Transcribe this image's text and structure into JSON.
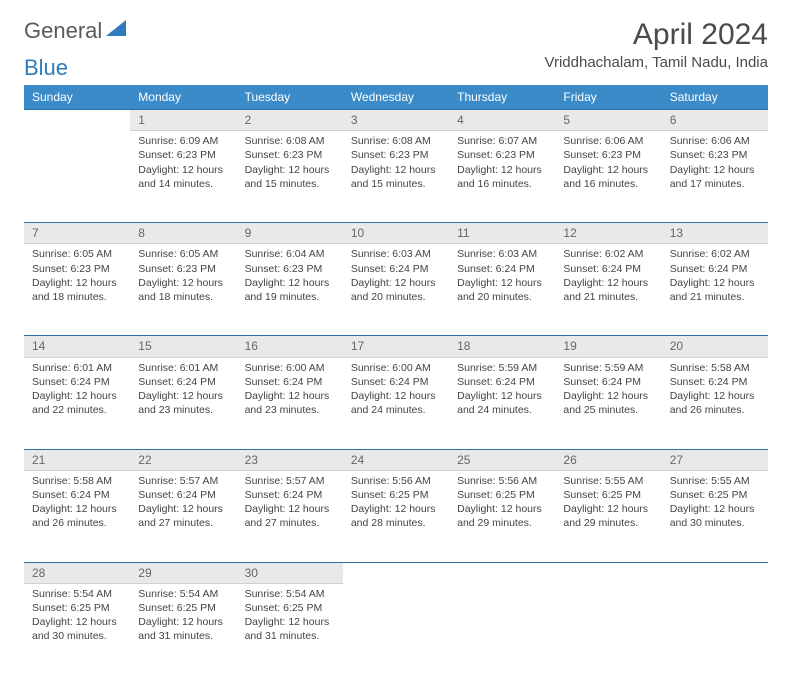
{
  "logo": {
    "text1": "General",
    "text2": "Blue",
    "icon_color": "#2f7bbf"
  },
  "title": "April 2024",
  "location": "Vriddhachalam, Tamil Nadu, India",
  "colors": {
    "header_bg": "#3b8bc9",
    "header_text": "#ffffff",
    "daynum_bg": "#e9e9e9",
    "daynum_border_top": "#2f6fa8",
    "body_text": "#444444",
    "title_text": "#4a4a4a"
  },
  "typography": {
    "title_fontsize": 30,
    "location_fontsize": 15,
    "dayheader_fontsize": 12,
    "cell_fontsize": 10.5
  },
  "layout": {
    "columns": 7,
    "header_row_height": 26,
    "body_row_height": 92
  },
  "day_headers": [
    "Sunday",
    "Monday",
    "Tuesday",
    "Wednesday",
    "Thursday",
    "Friday",
    "Saturday"
  ],
  "weeks": [
    [
      null,
      {
        "n": "1",
        "sr": "6:09 AM",
        "ss": "6:23 PM",
        "dl": "12 hours and 14 minutes."
      },
      {
        "n": "2",
        "sr": "6:08 AM",
        "ss": "6:23 PM",
        "dl": "12 hours and 15 minutes."
      },
      {
        "n": "3",
        "sr": "6:08 AM",
        "ss": "6:23 PM",
        "dl": "12 hours and 15 minutes."
      },
      {
        "n": "4",
        "sr": "6:07 AM",
        "ss": "6:23 PM",
        "dl": "12 hours and 16 minutes."
      },
      {
        "n": "5",
        "sr": "6:06 AM",
        "ss": "6:23 PM",
        "dl": "12 hours and 16 minutes."
      },
      {
        "n": "6",
        "sr": "6:06 AM",
        "ss": "6:23 PM",
        "dl": "12 hours and 17 minutes."
      }
    ],
    [
      {
        "n": "7",
        "sr": "6:05 AM",
        "ss": "6:23 PM",
        "dl": "12 hours and 18 minutes."
      },
      {
        "n": "8",
        "sr": "6:05 AM",
        "ss": "6:23 PM",
        "dl": "12 hours and 18 minutes."
      },
      {
        "n": "9",
        "sr": "6:04 AM",
        "ss": "6:23 PM",
        "dl": "12 hours and 19 minutes."
      },
      {
        "n": "10",
        "sr": "6:03 AM",
        "ss": "6:24 PM",
        "dl": "12 hours and 20 minutes."
      },
      {
        "n": "11",
        "sr": "6:03 AM",
        "ss": "6:24 PM",
        "dl": "12 hours and 20 minutes."
      },
      {
        "n": "12",
        "sr": "6:02 AM",
        "ss": "6:24 PM",
        "dl": "12 hours and 21 minutes."
      },
      {
        "n": "13",
        "sr": "6:02 AM",
        "ss": "6:24 PM",
        "dl": "12 hours and 21 minutes."
      }
    ],
    [
      {
        "n": "14",
        "sr": "6:01 AM",
        "ss": "6:24 PM",
        "dl": "12 hours and 22 minutes."
      },
      {
        "n": "15",
        "sr": "6:01 AM",
        "ss": "6:24 PM",
        "dl": "12 hours and 23 minutes."
      },
      {
        "n": "16",
        "sr": "6:00 AM",
        "ss": "6:24 PM",
        "dl": "12 hours and 23 minutes."
      },
      {
        "n": "17",
        "sr": "6:00 AM",
        "ss": "6:24 PM",
        "dl": "12 hours and 24 minutes."
      },
      {
        "n": "18",
        "sr": "5:59 AM",
        "ss": "6:24 PM",
        "dl": "12 hours and 24 minutes."
      },
      {
        "n": "19",
        "sr": "5:59 AM",
        "ss": "6:24 PM",
        "dl": "12 hours and 25 minutes."
      },
      {
        "n": "20",
        "sr": "5:58 AM",
        "ss": "6:24 PM",
        "dl": "12 hours and 26 minutes."
      }
    ],
    [
      {
        "n": "21",
        "sr": "5:58 AM",
        "ss": "6:24 PM",
        "dl": "12 hours and 26 minutes."
      },
      {
        "n": "22",
        "sr": "5:57 AM",
        "ss": "6:24 PM",
        "dl": "12 hours and 27 minutes."
      },
      {
        "n": "23",
        "sr": "5:57 AM",
        "ss": "6:24 PM",
        "dl": "12 hours and 27 minutes."
      },
      {
        "n": "24",
        "sr": "5:56 AM",
        "ss": "6:25 PM",
        "dl": "12 hours and 28 minutes."
      },
      {
        "n": "25",
        "sr": "5:56 AM",
        "ss": "6:25 PM",
        "dl": "12 hours and 29 minutes."
      },
      {
        "n": "26",
        "sr": "5:55 AM",
        "ss": "6:25 PM",
        "dl": "12 hours and 29 minutes."
      },
      {
        "n": "27",
        "sr": "5:55 AM",
        "ss": "6:25 PM",
        "dl": "12 hours and 30 minutes."
      }
    ],
    [
      {
        "n": "28",
        "sr": "5:54 AM",
        "ss": "6:25 PM",
        "dl": "12 hours and 30 minutes."
      },
      {
        "n": "29",
        "sr": "5:54 AM",
        "ss": "6:25 PM",
        "dl": "12 hours and 31 minutes."
      },
      {
        "n": "30",
        "sr": "5:54 AM",
        "ss": "6:25 PM",
        "dl": "12 hours and 31 minutes."
      },
      null,
      null,
      null,
      null
    ]
  ],
  "labels": {
    "sunrise": "Sunrise:",
    "sunset": "Sunset:",
    "daylight": "Daylight:"
  }
}
